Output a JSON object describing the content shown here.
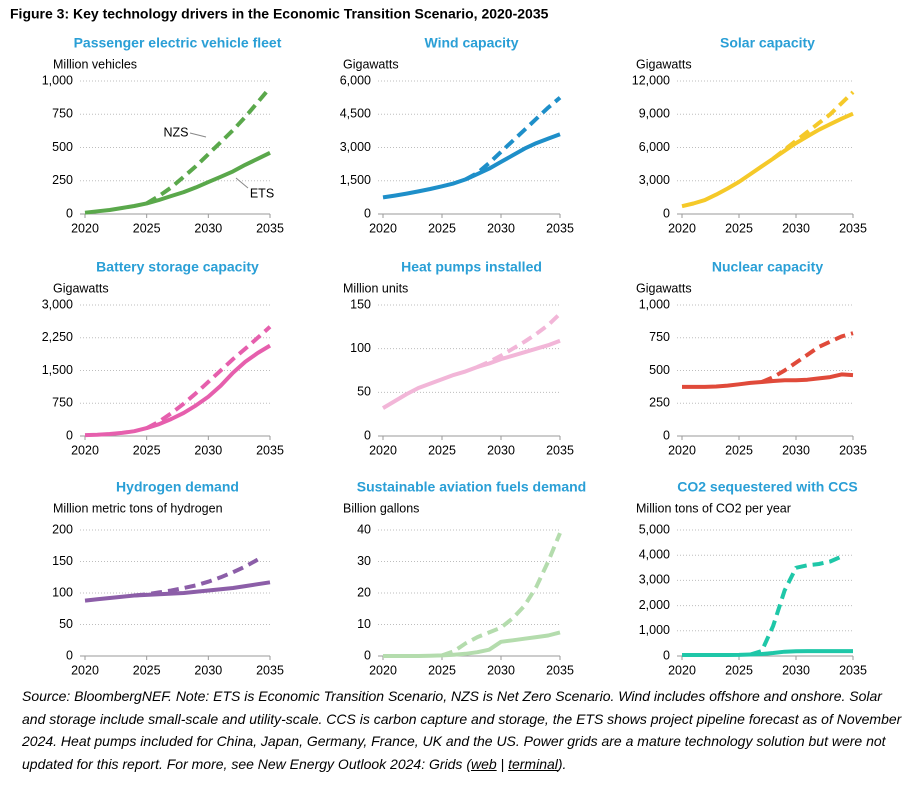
{
  "figure_title": "Figure 3: Key technology drivers in the Economic Transition Scenario, 2020-2035",
  "note": {
    "text": "Source: BloombergNEF. Note: ETS is Economic Transition Scenario, NZS is Net Zero Scenario. Wind includes offshore and onshore. Solar and storage include small-scale and utility-scale. CCS is carbon capture and storage, the ETS shows project pipeline forecast as of November 2024. Heat pumps included for China, Japan, Germany, France, UK and the US. Power grids are a mature technology solution but were not updated for this report. For more, see New Energy Outlook 2024: Grids (",
    "links": [
      "web",
      "terminal"
    ],
    "separator": " | ",
    "end": ")."
  },
  "chart_data": [
    {
      "type": "line",
      "title": "Passenger electric vehicle fleet",
      "ylabel": "Million vehicles",
      "x": [
        2020,
        2021,
        2022,
        2023,
        2024,
        2025,
        2026,
        2027,
        2028,
        2029,
        2030,
        2031,
        2032,
        2033,
        2034,
        2035
      ],
      "xlim": [
        2020,
        2035
      ],
      "xticks": [
        2020,
        2025,
        2030,
        2035
      ],
      "ylim": [
        0,
        1000
      ],
      "yticks": [
        0,
        250,
        500,
        750,
        {
          "value": 1000,
          "label": "1,000"
        }
      ],
      "grid": true,
      "series": [
        {
          "name": "ETS",
          "color": "#5aa84b",
          "style": "solid",
          "values": [
            10,
            20,
            30,
            45,
            60,
            80,
            105,
            135,
            165,
            200,
            240,
            280,
            320,
            370,
            415,
            460
          ]
        },
        {
          "name": "NZS",
          "color": "#5aa84b",
          "style": "dashed",
          "values": [
            null,
            null,
            null,
            null,
            null,
            80,
            135,
            200,
            280,
            360,
            450,
            540,
            630,
            730,
            840,
            950
          ]
        }
      ]
    },
    {
      "type": "line",
      "title": "Wind capacity",
      "ylabel": "Gigawatts",
      "x": [
        2020,
        2021,
        2022,
        2023,
        2024,
        2025,
        2026,
        2027,
        2028,
        2029,
        2030,
        2031,
        2032,
        2033,
        2034,
        2035
      ],
      "xlim": [
        2020,
        2035
      ],
      "xticks": [
        2020,
        2025,
        2030,
        2035
      ],
      "ylim": [
        0,
        6000
      ],
      "yticks": [
        0,
        {
          "value": 1500,
          "label": "1,500"
        },
        {
          "value": 3000,
          "label": "3,000"
        },
        {
          "value": 4500,
          "label": "4,500"
        },
        {
          "value": 6000,
          "label": "6,000"
        }
      ],
      "grid": true,
      "series": [
        {
          "color": "#1e8fc9",
          "style": "solid",
          "values": [
            750,
            830,
            920,
            1020,
            1130,
            1250,
            1380,
            1560,
            1800,
            2050,
            2350,
            2650,
            2950,
            3200,
            3400,
            3600
          ]
        },
        {
          "color": "#1e8fc9",
          "style": "dashed",
          "values": [
            null,
            null,
            null,
            null,
            null,
            null,
            null,
            1560,
            1850,
            2300,
            2800,
            3300,
            3800,
            4300,
            4800,
            5250
          ]
        }
      ]
    },
    {
      "type": "line",
      "title": "Solar capacity",
      "ylabel": "Gigawatts",
      "x": [
        2020,
        2021,
        2022,
        2023,
        2024,
        2025,
        2026,
        2027,
        2028,
        2029,
        2030,
        2031,
        2032,
        2033,
        2034,
        2035
      ],
      "xlim": [
        2020,
        2035
      ],
      "xticks": [
        2020,
        2025,
        2030,
        2035
      ],
      "ylim": [
        0,
        12000
      ],
      "yticks": [
        0,
        {
          "value": 3000,
          "label": "3,000"
        },
        {
          "value": 6000,
          "label": "6,000"
        },
        {
          "value": 9000,
          "label": "9,000"
        },
        {
          "value": 12000,
          "label": "12,000"
        }
      ],
      "grid": true,
      "series": [
        {
          "color": "#f5c929",
          "style": "solid",
          "values": [
            700,
            950,
            1250,
            1750,
            2300,
            2900,
            3600,
            4300,
            5000,
            5700,
            6400,
            7000,
            7600,
            8100,
            8600,
            9050
          ]
        },
        {
          "color": "#f5c929",
          "style": "dashed",
          "values": [
            null,
            null,
            null,
            null,
            null,
            null,
            null,
            null,
            5000,
            5800,
            6600,
            7400,
            8200,
            9000,
            10000,
            11000
          ]
        }
      ]
    },
    {
      "type": "line",
      "title": "Battery storage capacity",
      "ylabel": "Gigawatts",
      "x": [
        2020,
        2021,
        2022,
        2023,
        2024,
        2025,
        2026,
        2027,
        2028,
        2029,
        2030,
        2031,
        2032,
        2033,
        2034,
        2035
      ],
      "xlim": [
        2020,
        2035
      ],
      "xticks": [
        2020,
        2025,
        2030,
        2035
      ],
      "ylim": [
        0,
        3000
      ],
      "yticks": [
        0,
        750,
        {
          "value": 1500,
          "label": "1,500"
        },
        {
          "value": 2250,
          "label": "2,250"
        },
        {
          "value": 3000,
          "label": "3,000"
        }
      ],
      "grid": true,
      "series": [
        {
          "color": "#e65fad",
          "style": "solid",
          "values": [
            20,
            30,
            45,
            70,
            110,
            180,
            270,
            390,
            530,
            700,
            900,
            1150,
            1450,
            1700,
            1900,
            2070
          ]
        },
        {
          "color": "#e65fad",
          "style": "dashed",
          "values": [
            null,
            null,
            null,
            null,
            null,
            180,
            330,
            520,
            740,
            980,
            1240,
            1500,
            1760,
            2000,
            2250,
            2500
          ]
        }
      ]
    },
    {
      "type": "line",
      "title": "Heat pumps installed",
      "ylabel": "Million units",
      "x": [
        2020,
        2021,
        2022,
        2023,
        2024,
        2025,
        2026,
        2027,
        2028,
        2029,
        2030,
        2031,
        2032,
        2033,
        2034,
        2035
      ],
      "xlim": [
        2020,
        2035
      ],
      "xticks": [
        2020,
        2025,
        2030,
        2035
      ],
      "ylim": [
        0,
        150
      ],
      "yticks": [
        0,
        50,
        100,
        150
      ],
      "grid": true,
      "series": [
        {
          "color": "#f2b6d8",
          "style": "solid",
          "values": [
            32,
            40,
            48,
            55,
            60,
            65,
            70,
            74,
            79,
            83,
            88,
            92,
            96,
            100,
            104,
            109
          ]
        },
        {
          "color": "#f2b6d8",
          "style": "dashed",
          "values": [
            null,
            null,
            null,
            null,
            null,
            null,
            null,
            null,
            79,
            85,
            92,
            100,
            108,
            117,
            127,
            140
          ]
        }
      ]
    },
    {
      "type": "line",
      "title": "Nuclear capacity",
      "ylabel": "Gigawatts",
      "x": [
        2020,
        2021,
        2022,
        2023,
        2024,
        2025,
        2026,
        2027,
        2028,
        2029,
        2030,
        2031,
        2032,
        2033,
        2034,
        2035
      ],
      "xlim": [
        2020,
        2035
      ],
      "xticks": [
        2020,
        2025,
        2030,
        2035
      ],
      "ylim": [
        0,
        1000
      ],
      "yticks": [
        0,
        250,
        500,
        750,
        {
          "value": 1000,
          "label": "1,000"
        }
      ],
      "grid": true,
      "series": [
        {
          "color": "#e04a3a",
          "style": "solid",
          "values": [
            375,
            375,
            375,
            378,
            385,
            395,
            405,
            412,
            420,
            425,
            425,
            430,
            440,
            450,
            470,
            465
          ]
        },
        {
          "color": "#e04a3a",
          "style": "dashed",
          "values": [
            null,
            null,
            null,
            null,
            null,
            null,
            null,
            412,
            450,
            500,
            560,
            620,
            680,
            720,
            760,
            785
          ]
        }
      ]
    },
    {
      "type": "line",
      "title": "Hydrogen demand",
      "ylabel": "Million metric tons of hydrogen",
      "x": [
        2020,
        2021,
        2022,
        2023,
        2024,
        2025,
        2026,
        2027,
        2028,
        2029,
        2030,
        2031,
        2032,
        2033,
        2034,
        2035
      ],
      "xlim": [
        2020,
        2035
      ],
      "xticks": [
        2020,
        2025,
        2030,
        2035
      ],
      "ylim": [
        0,
        200
      ],
      "yticks": [
        0,
        50,
        100,
        150,
        200
      ],
      "grid": true,
      "series": [
        {
          "color": "#8c5ea8",
          "style": "solid",
          "values": [
            88,
            90,
            92,
            94,
            96,
            97,
            98,
            99,
            100,
            102,
            104,
            106,
            108,
            111,
            114,
            117
          ]
        },
        {
          "color": "#8c5ea8",
          "style": "dashed",
          "values": [
            null,
            null,
            null,
            null,
            96,
            98,
            101,
            104,
            108,
            112,
            118,
            125,
            133,
            142,
            153,
            null
          ]
        }
      ]
    },
    {
      "type": "line",
      "title": "Sustainable aviation fuels demand",
      "ylabel": "Billion gallons",
      "x": [
        2020,
        2021,
        2022,
        2023,
        2024,
        2025,
        2026,
        2027,
        2028,
        2029,
        2030,
        2031,
        2032,
        2033,
        2034,
        2035
      ],
      "xlim": [
        2020,
        2035
      ],
      "xticks": [
        2020,
        2025,
        2030,
        2035
      ],
      "ylim": [
        0,
        40
      ],
      "yticks": [
        0,
        10,
        20,
        30,
        40
      ],
      "grid": true,
      "series": [
        {
          "color": "#b4dcad",
          "style": "solid",
          "values": [
            0,
            0,
            0,
            0,
            0.1,
            0.2,
            0.4,
            0.7,
            1.2,
            2,
            4.5,
            5,
            5.5,
            6,
            6.5,
            7.5
          ]
        },
        {
          "color": "#b4dcad",
          "style": "dashed",
          "values": [
            null,
            null,
            null,
            null,
            null,
            0.2,
            1.5,
            4,
            6,
            7.5,
            9,
            12,
            16,
            22,
            30,
            39
          ]
        }
      ]
    },
    {
      "type": "line",
      "title": "CO2 sequestered with CCS",
      "ylabel": "Million tons of CO2 per year",
      "x": [
        2020,
        2021,
        2022,
        2023,
        2024,
        2025,
        2026,
        2027,
        2028,
        2029,
        2030,
        2031,
        2032,
        2033,
        2034,
        2035
      ],
      "xlim": [
        2020,
        2035
      ],
      "xticks": [
        2020,
        2025,
        2030,
        2035
      ],
      "ylim": [
        0,
        5000
      ],
      "yticks": [
        0,
        {
          "value": 1000,
          "label": "1,000"
        },
        {
          "value": 2000,
          "label": "2,000"
        },
        {
          "value": 3000,
          "label": "3,000"
        },
        {
          "value": 4000,
          "label": "4,000"
        },
        {
          "value": 5000,
          "label": "5,000"
        }
      ],
      "grid": true,
      "series": [
        {
          "color": "#1fc7a8",
          "style": "solid",
          "values": [
            40,
            40,
            40,
            40,
            40,
            45,
            60,
            80,
            120,
            170,
            190,
            195,
            195,
            195,
            195,
            195
          ]
        },
        {
          "color": "#1fc7a8",
          "style": "dashed",
          "values": [
            null,
            null,
            null,
            null,
            null,
            null,
            60,
            200,
            1200,
            2600,
            3500,
            3600,
            3650,
            3750,
            3950,
            null
          ]
        }
      ]
    }
  ]
}
